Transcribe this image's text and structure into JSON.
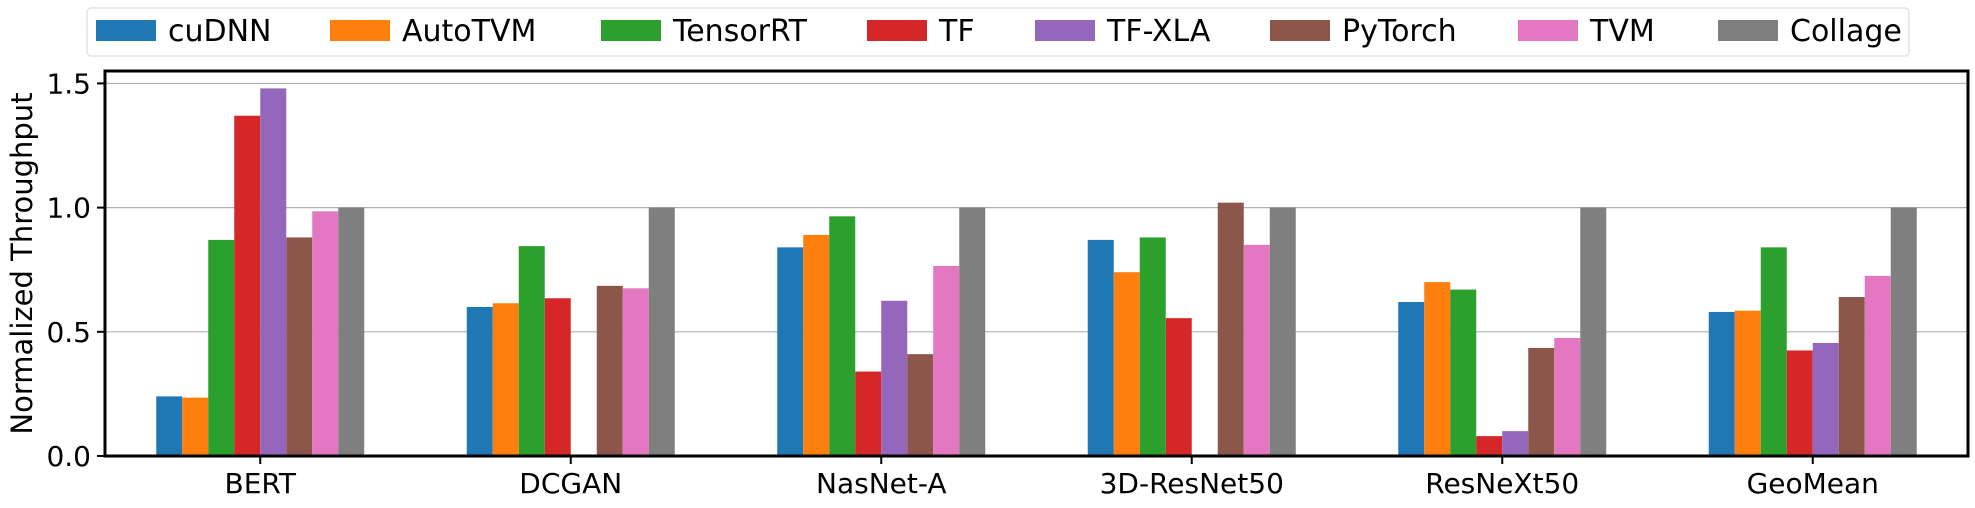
{
  "chart_data": {
    "type": "bar",
    "title": "",
    "xlabel": "",
    "ylabel": "Normalized Throughput",
    "ylim": [
      0,
      1.55
    ],
    "yticks": [
      "0.0",
      "0.5",
      "1.0",
      "1.5"
    ],
    "ytick_values": [
      0,
      0.5,
      1.0,
      1.5
    ],
    "grid": "horizontal",
    "legend_position": "top",
    "categories": [
      "BERT",
      "DCGAN",
      "NasNet-A",
      "3D-ResNet50",
      "ResNeXt50",
      "GeoMean"
    ],
    "series": [
      {
        "name": "cuDNN",
        "color": "#1f77b4",
        "values": [
          0.24,
          0.6,
          0.84,
          0.87,
          0.62,
          0.58
        ]
      },
      {
        "name": "AutoTVM",
        "color": "#ff7f0e",
        "values": [
          0.235,
          0.615,
          0.89,
          0.74,
          0.7,
          0.585
        ]
      },
      {
        "name": "TensorRT",
        "color": "#2ca02c",
        "values": [
          0.87,
          0.845,
          0.965,
          0.88,
          0.67,
          0.84
        ]
      },
      {
        "name": "TF",
        "color": "#d62728",
        "values": [
          1.37,
          0.635,
          0.34,
          0.555,
          0.08,
          0.425
        ]
      },
      {
        "name": "TF-XLA",
        "color": "#9467bd",
        "values": [
          1.48,
          null,
          0.625,
          null,
          0.1,
          0.455
        ]
      },
      {
        "name": "PyTorch",
        "color": "#8c564b",
        "values": [
          0.88,
          0.685,
          0.41,
          1.02,
          0.435,
          0.64
        ]
      },
      {
        "name": "TVM",
        "color": "#e377c2",
        "values": [
          0.985,
          0.675,
          0.765,
          0.85,
          0.475,
          0.725
        ]
      },
      {
        "name": "Collage",
        "color": "#7f7f7f",
        "values": [
          1.0,
          1.0,
          1.0,
          1.0,
          1.0,
          1.0
        ]
      }
    ]
  }
}
